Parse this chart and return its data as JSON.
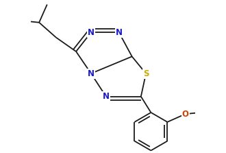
{
  "bg_color": "#ffffff",
  "line_color": "#1a1a1a",
  "atom_colors": {
    "N": "#1a1acc",
    "S": "#ccaa00",
    "O": "#cc4400"
  },
  "figsize": [
    3.3,
    2.23
  ],
  "dpi": 100
}
